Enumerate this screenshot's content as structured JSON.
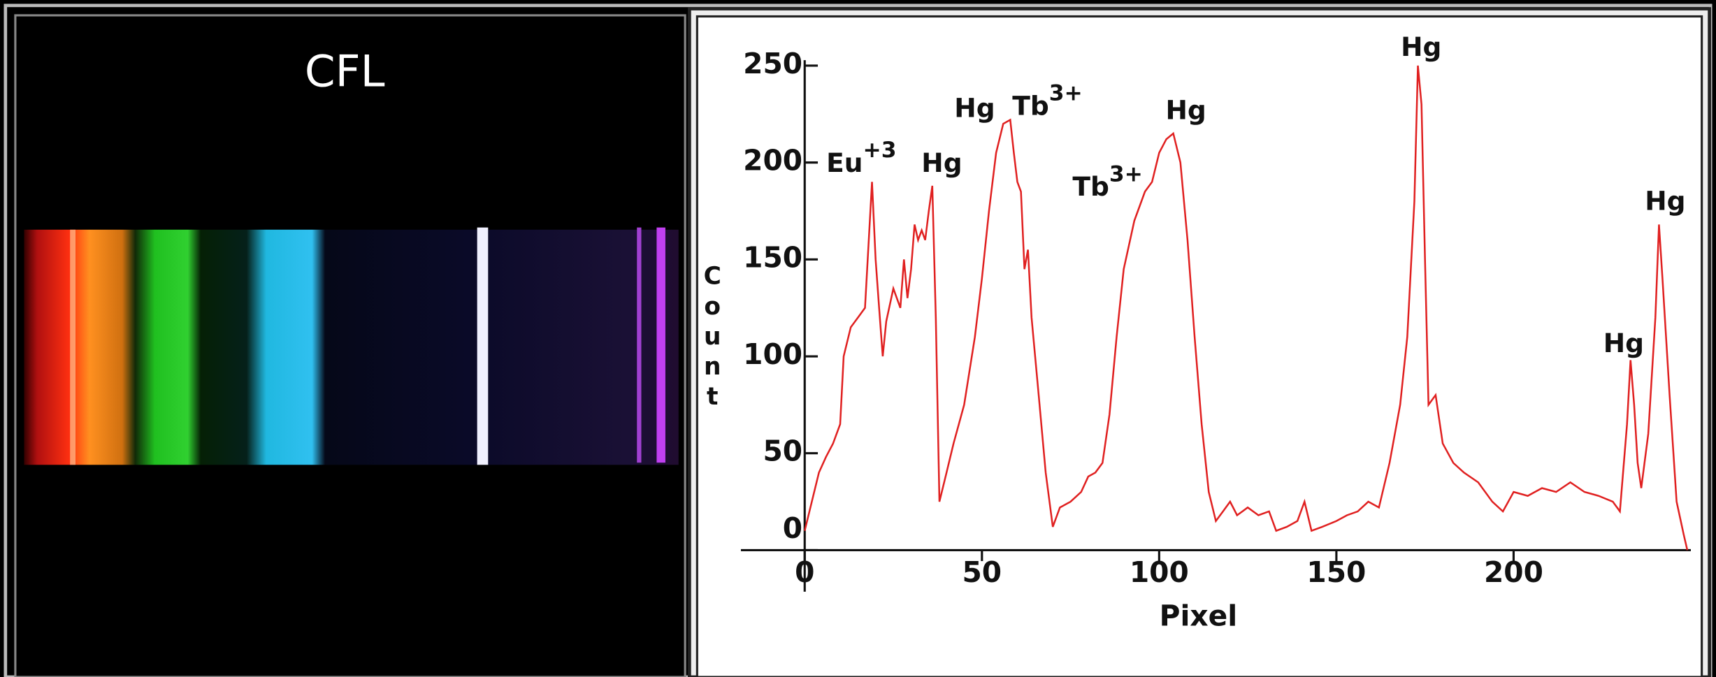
{
  "left_title": "CFL",
  "chart_data": {
    "type": "line",
    "x_label": "Pixel",
    "y_label": "Count",
    "color": "#e02020",
    "xlim": [
      -18,
      250
    ],
    "ylim": [
      0,
      250
    ],
    "xticks": [
      0,
      50,
      100,
      150,
      200
    ],
    "yticks": [
      0,
      50,
      100,
      150,
      200,
      250
    ],
    "annotations": [
      {
        "text": "Eu",
        "sup": "+3"
      },
      {
        "text": "Hg"
      },
      {
        "text": "Hg"
      },
      {
        "text": "Tb",
        "sup": "3+"
      },
      {
        "text": "Tb",
        "sup": "3+"
      },
      {
        "text": "Hg"
      },
      {
        "text": "Hg"
      },
      {
        "text": "Hg"
      },
      {
        "text": "Hg"
      }
    ],
    "x": [
      0,
      2,
      4,
      6,
      8,
      10,
      11,
      13,
      15,
      17,
      19,
      20,
      21,
      22,
      23,
      25,
      27,
      28,
      29,
      30,
      31,
      32,
      33,
      34,
      35,
      36,
      37,
      38,
      40,
      42,
      45,
      48,
      50,
      52,
      54,
      56,
      58,
      59,
      60,
      61,
      62,
      63,
      64,
      66,
      68,
      70,
      72,
      75,
      78,
      80,
      82,
      84,
      86,
      88,
      90,
      93,
      96,
      98,
      100,
      102,
      104,
      106,
      108,
      110,
      112,
      114,
      116,
      118,
      120,
      122,
      125,
      128,
      131,
      133,
      136,
      139,
      141,
      143,
      146,
      150,
      153,
      156,
      159,
      162,
      165,
      168,
      170,
      172,
      173,
      174,
      175,
      176,
      178,
      180,
      183,
      186,
      190,
      194,
      197,
      200,
      204,
      208,
      212,
      216,
      220,
      224,
      228,
      230,
      232,
      233,
      234,
      235,
      236,
      238,
      240,
      241,
      242,
      244,
      246,
      248,
      249
    ],
    "values": [
      10,
      25,
      40,
      48,
      55,
      65,
      100,
      115,
      120,
      125,
      190,
      150,
      125,
      100,
      118,
      135,
      125,
      150,
      130,
      145,
      168,
      160,
      165,
      160,
      175,
      188,
      120,
      25,
      40,
      55,
      75,
      110,
      140,
      175,
      205,
      220,
      222,
      205,
      190,
      185,
      145,
      155,
      120,
      80,
      40,
      12,
      22,
      25,
      30,
      38,
      40,
      45,
      70,
      110,
      145,
      170,
      185,
      190,
      205,
      212,
      215,
      200,
      160,
      110,
      65,
      30,
      15,
      20,
      25,
      18,
      22,
      18,
      20,
      10,
      12,
      15,
      25,
      10,
      12,
      15,
      18,
      20,
      25,
      22,
      45,
      75,
      110,
      180,
      250,
      230,
      150,
      75,
      80,
      55,
      45,
      40,
      35,
      25,
      20,
      30,
      28,
      32,
      30,
      35,
      30,
      28,
      25,
      20,
      65,
      98,
      75,
      45,
      32,
      60,
      120,
      168,
      140,
      80,
      25,
      8,
      0
    ]
  }
}
